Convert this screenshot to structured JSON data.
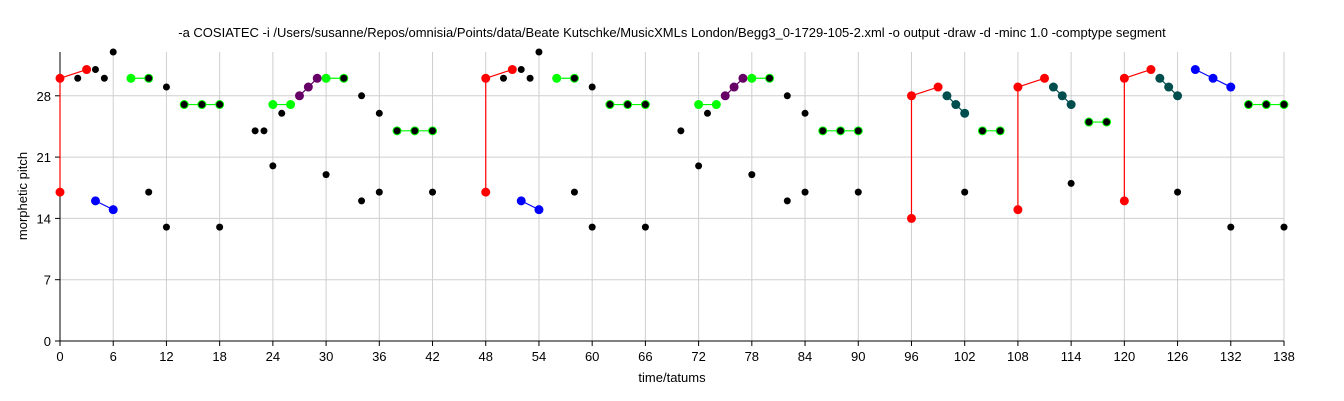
{
  "chart_data": {
    "type": "scatter",
    "title": "-a COSIATEC -i /Users/susanne/Repos/omnisia/Points/data/Beate Kutschke/MusicXMLs London/Begg3_0-1729-105-2.xml -o output -draw -d -minc 1.0 -comptype segment",
    "xlabel": "time/tatums",
    "ylabel": "morphetic pitch",
    "xlim": [
      0,
      138
    ],
    "ylim": [
      0,
      33
    ],
    "xticks": [
      0,
      6,
      12,
      18,
      24,
      30,
      36,
      42,
      48,
      54,
      60,
      66,
      72,
      78,
      84,
      90,
      96,
      102,
      108,
      114,
      120,
      126,
      132,
      138
    ],
    "yticks": [
      0,
      7,
      14,
      21,
      28
    ],
    "grid": true,
    "points": [
      [
        2,
        30
      ],
      [
        4,
        31
      ],
      [
        5,
        30
      ],
      [
        6,
        33
      ],
      [
        10,
        30
      ],
      [
        12,
        29
      ],
      [
        14,
        27
      ],
      [
        16,
        27
      ],
      [
        18,
        27
      ],
      [
        12,
        13
      ],
      [
        18,
        13
      ],
      [
        10,
        17
      ],
      [
        22,
        24
      ],
      [
        23,
        24
      ],
      [
        24,
        20
      ],
      [
        25,
        26
      ],
      [
        30,
        19
      ],
      [
        32,
        30
      ],
      [
        34,
        28
      ],
      [
        34,
        16
      ],
      [
        36,
        26
      ],
      [
        36,
        17
      ],
      [
        38,
        24
      ],
      [
        40,
        24
      ],
      [
        42,
        24
      ],
      [
        42,
        17
      ],
      [
        50,
        30
      ],
      [
        52,
        31
      ],
      [
        53,
        30
      ],
      [
        54,
        33
      ],
      [
        58,
        30
      ],
      [
        58,
        17
      ],
      [
        60,
        29
      ],
      [
        60,
        13
      ],
      [
        62,
        27
      ],
      [
        64,
        27
      ],
      [
        66,
        27
      ],
      [
        66,
        13
      ],
      [
        70,
        24
      ],
      [
        72,
        20
      ],
      [
        73,
        26
      ],
      [
        78,
        19
      ],
      [
        80,
        30
      ],
      [
        82,
        28
      ],
      [
        82,
        16
      ],
      [
        84,
        26
      ],
      [
        84,
        17
      ],
      [
        86,
        24
      ],
      [
        88,
        24
      ],
      [
        90,
        24
      ],
      [
        90,
        17
      ],
      [
        102,
        17
      ],
      [
        104,
        24
      ],
      [
        106,
        24
      ],
      [
        114,
        18
      ],
      [
        116,
        25
      ],
      [
        118,
        25
      ],
      [
        126,
        17
      ],
      [
        132,
        13
      ],
      [
        134,
        27
      ],
      [
        136,
        27
      ],
      [
        138,
        27
      ],
      [
        138,
        13
      ]
    ],
    "segments": [
      {
        "color": "#ff0000",
        "points": [
          [
            0,
            17
          ],
          [
            0,
            30
          ],
          [
            3,
            31
          ]
        ]
      },
      {
        "color": "#0000ff",
        "points": [
          [
            4,
            16
          ],
          [
            6,
            15
          ]
        ]
      },
      {
        "color": "#00ff00",
        "points": [
          [
            8,
            30
          ],
          [
            10,
            30
          ]
        ]
      },
      {
        "color": "#00ff00",
        "points": [
          [
            14,
            27
          ],
          [
            16,
            27
          ],
          [
            18,
            27
          ]
        ]
      },
      {
        "color": "#00ff00",
        "points": [
          [
            24,
            27
          ],
          [
            26,
            27
          ]
        ]
      },
      {
        "color": "#660066",
        "points": [
          [
            27,
            28
          ],
          [
            28,
            29
          ],
          [
            29,
            30
          ]
        ]
      },
      {
        "color": "#00ff00",
        "points": [
          [
            30,
            30
          ],
          [
            32,
            30
          ]
        ]
      },
      {
        "color": "#00ff00",
        "points": [
          [
            38,
            24
          ],
          [
            40,
            24
          ],
          [
            42,
            24
          ]
        ]
      },
      {
        "color": "#ff0000",
        "points": [
          [
            48,
            17
          ],
          [
            48,
            30
          ],
          [
            51,
            31
          ]
        ]
      },
      {
        "color": "#0000ff",
        "points": [
          [
            52,
            16
          ],
          [
            54,
            15
          ]
        ]
      },
      {
        "color": "#00ff00",
        "points": [
          [
            56,
            30
          ],
          [
            58,
            30
          ]
        ]
      },
      {
        "color": "#00ff00",
        "points": [
          [
            62,
            27
          ],
          [
            64,
            27
          ],
          [
            66,
            27
          ]
        ]
      },
      {
        "color": "#00ff00",
        "points": [
          [
            72,
            27
          ],
          [
            74,
            27
          ]
        ]
      },
      {
        "color": "#660066",
        "points": [
          [
            75,
            28
          ],
          [
            76,
            29
          ],
          [
            77,
            30
          ]
        ]
      },
      {
        "color": "#00ff00",
        "points": [
          [
            78,
            30
          ],
          [
            80,
            30
          ]
        ]
      },
      {
        "color": "#00ff00",
        "points": [
          [
            86,
            24
          ],
          [
            88,
            24
          ],
          [
            90,
            24
          ]
        ]
      },
      {
        "color": "#ff0000",
        "points": [
          [
            96,
            14
          ],
          [
            96,
            28
          ],
          [
            99,
            29
          ]
        ]
      },
      {
        "color": "#004d4d",
        "points": [
          [
            100,
            28
          ],
          [
            101,
            27
          ],
          [
            102,
            26
          ]
        ]
      },
      {
        "color": "#00ff00",
        "points": [
          [
            104,
            24
          ],
          [
            106,
            24
          ]
        ]
      },
      {
        "color": "#ff0000",
        "points": [
          [
            108,
            15
          ],
          [
            108,
            29
          ],
          [
            111,
            30
          ]
        ]
      },
      {
        "color": "#004d4d",
        "points": [
          [
            112,
            29
          ],
          [
            113,
            28
          ],
          [
            114,
            27
          ]
        ]
      },
      {
        "color": "#00ff00",
        "points": [
          [
            116,
            25
          ],
          [
            118,
            25
          ]
        ]
      },
      {
        "color": "#ff0000",
        "points": [
          [
            120,
            16
          ],
          [
            120,
            30
          ],
          [
            123,
            31
          ]
        ]
      },
      {
        "color": "#004d4d",
        "points": [
          [
            124,
            30
          ],
          [
            125,
            29
          ],
          [
            126,
            28
          ]
        ]
      },
      {
        "color": "#0000ff",
        "points": [
          [
            128,
            31
          ],
          [
            130,
            30
          ],
          [
            132,
            29
          ]
        ]
      },
      {
        "color": "#00ff00",
        "points": [
          [
            134,
            27
          ],
          [
            136,
            27
          ],
          [
            138,
            27
          ]
        ]
      }
    ]
  }
}
